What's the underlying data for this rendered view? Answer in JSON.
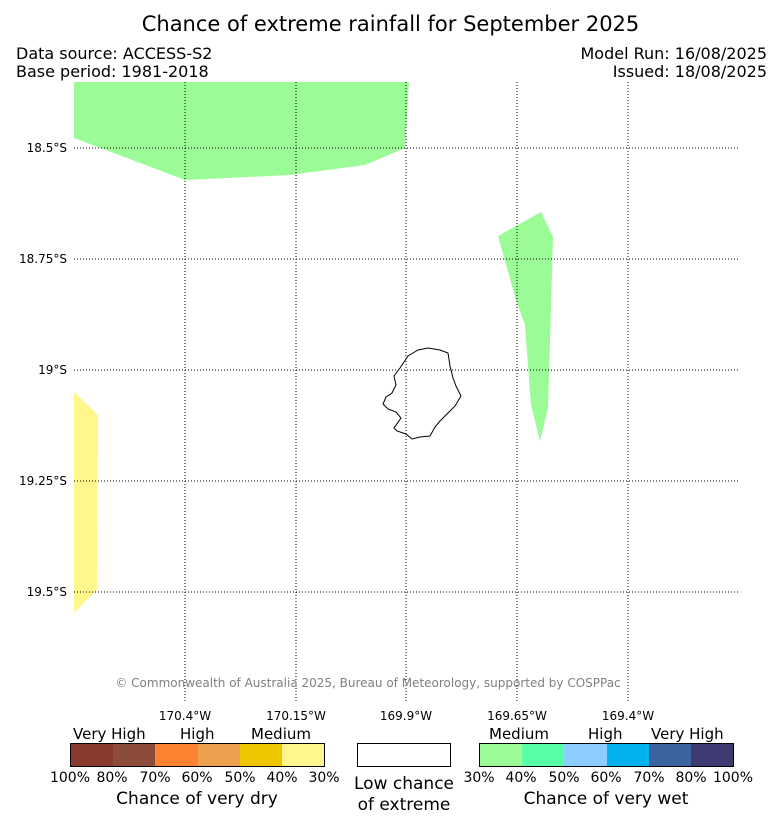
{
  "title": "Chance of extreme rainfall for September 2025",
  "data_source": "Data source: ACCESS-S2",
  "base_period": "Base period: 1981-2018",
  "model_run": "Model Run: 16/08/2025",
  "issued": "Issued: 18/08/2025",
  "copyright": "© Commonwealth of Australia 2025, Bureau of Meteorology, supported by COSPPac",
  "map": {
    "lat_labels": [
      "18.5°S",
      "18.75°S",
      "19°S",
      "19.25°S",
      "19.5°S"
    ],
    "lon_labels": [
      "170.4°W",
      "170.15°W",
      "169.9°W",
      "169.65°W",
      "169.4°W"
    ],
    "colors": {
      "wet_medium": "#9bfb96",
      "dry_medium": "#fff68c",
      "island_outline": "#000000"
    }
  },
  "legend": {
    "dry": {
      "categories": [
        "Very High",
        "High",
        "Medium"
      ],
      "ticks": [
        "100%",
        "80%",
        "70%",
        "60%",
        "50%",
        "40%",
        "30%"
      ],
      "colors": [
        "#8b3a2f",
        "#8b4d3a",
        "#ff8230",
        "#eda04d",
        "#efc600",
        "#fff68c"
      ],
      "title": "Chance of very dry"
    },
    "low": {
      "title_line1": "Low chance",
      "title_line2": "of extreme"
    },
    "wet": {
      "categories": [
        "Medium",
        "High",
        "Very High"
      ],
      "ticks": [
        "30%",
        "40%",
        "50%",
        "60%",
        "70%",
        "80%",
        "100%"
      ],
      "colors": [
        "#9bfb96",
        "#57ffa6",
        "#8ccdff",
        "#00b3ee",
        "#3a64a0",
        "#3e3b72"
      ],
      "title": "Chance of very wet"
    }
  }
}
